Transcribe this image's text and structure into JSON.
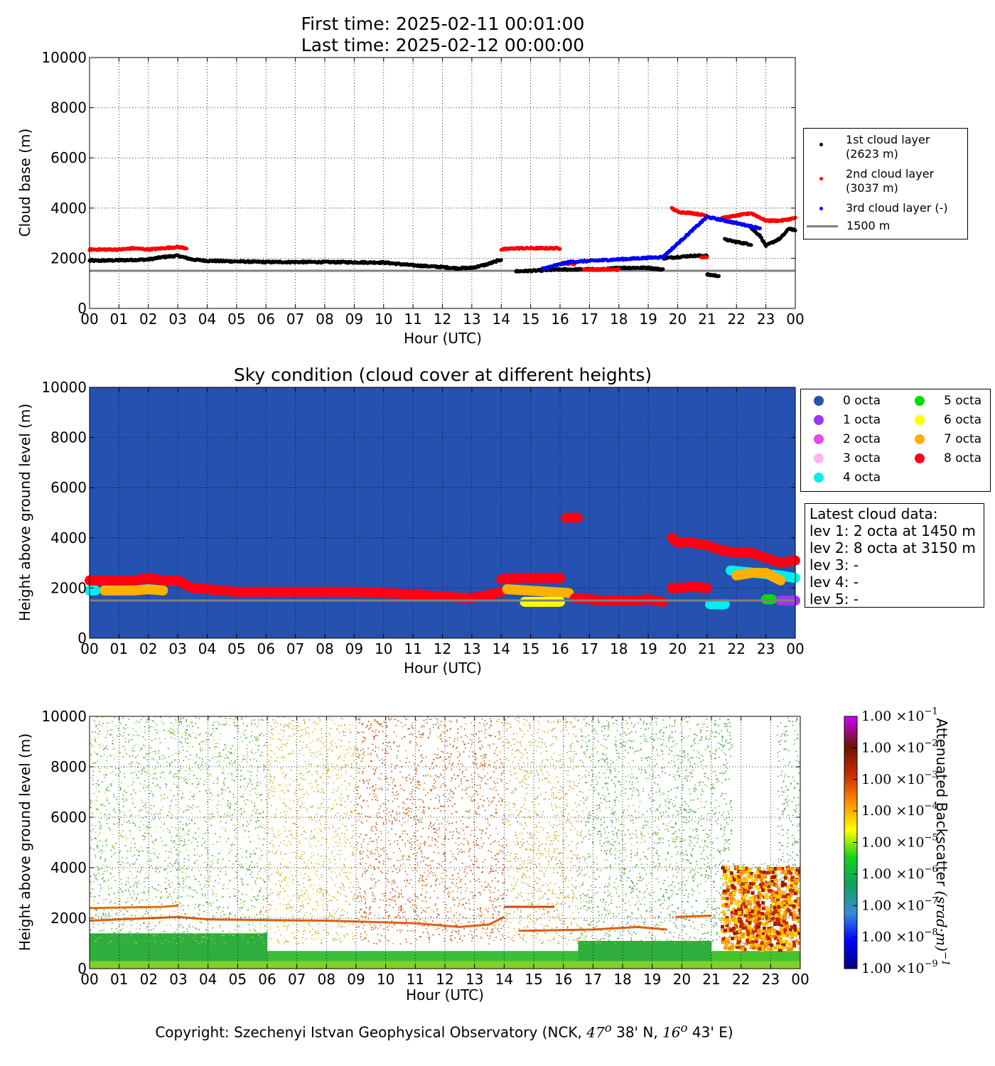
{
  "title_line1": "First time: 2025-02-11 00:01:00",
  "title_line2": "Last time: 2025-02-12 00:00:00",
  "copyright": {
    "prefix": "Copyright: Szechenyi Istvan Geophysical Observatory (NCK, ",
    "lat_deg": "47",
    "lat_min": " 38' N, ",
    "lon_deg": "16",
    "lon_min": " 43' E)",
    "degree_symbol": "o"
  },
  "legend_cloud": [
    {
      "label_line1": "1st cloud layer",
      "label_line2": "(2623 m)",
      "color": "#000000"
    },
    {
      "label_line1": "2nd cloud layer",
      "label_line2": "(3037 m)",
      "color": "#ff0000"
    },
    {
      "label_line1": "3rd cloud layer (-)",
      "label_line2": "",
      "color": "#0000ff"
    },
    {
      "label_line1": "1500 m",
      "label_line2": "",
      "color": "#808080"
    }
  ],
  "legend_octa": [
    {
      "label": "0 octa",
      "color": "#2551b0"
    },
    {
      "label": "1 octa",
      "color": "#a035f0"
    },
    {
      "label": "2 octa",
      "color": "#e64ae6"
    },
    {
      "label": "3 octa",
      "color": "#fbb6f1"
    },
    {
      "label": "4 octa",
      "color": "#00eeee"
    },
    {
      "label": "5 octa",
      "color": "#00dd00"
    },
    {
      "label": "6 octa",
      "color": "#ffff00"
    },
    {
      "label": "7 octa",
      "color": "#ffb000"
    },
    {
      "label": "8 octa",
      "color": "#ff0015"
    }
  ],
  "latest": {
    "heading": "Latest cloud data:",
    "lines": [
      "lev 1: 2 octa at 1450 m",
      "lev 2: 8 octa at 3150 m",
      "lev 3: -",
      "lev 4: -",
      "lev 5: -"
    ]
  },
  "chart_data": [
    {
      "type": "scatter",
      "xlabel": "Hour (UTC)",
      "ylabel": "Cloud base (m)",
      "xlim": [
        0,
        24
      ],
      "ylim": [
        0,
        10000
      ],
      "x_ticks": [
        "00",
        "01",
        "02",
        "03",
        "04",
        "05",
        "06",
        "07",
        "08",
        "09",
        "10",
        "11",
        "12",
        "13",
        "14",
        "15",
        "16",
        "17",
        "18",
        "19",
        "20",
        "21",
        "22",
        "23",
        "00"
      ],
      "y_ticks": [
        "0",
        "2000",
        "4000",
        "6000",
        "8000",
        "10000"
      ],
      "grid": true,
      "legend_position": "right",
      "reference_line": {
        "y": 1500,
        "color": "#808080"
      },
      "series": [
        {
          "name": "1st cloud layer",
          "color": "#000000",
          "segments": [
            {
              "x": [
                0,
                1,
                2,
                2.5,
                3,
                3.5,
                4,
                6,
                8,
                10,
                11,
                12,
                12.5,
                13,
                13.5,
                14
              ],
              "y": [
                1900,
                1920,
                1950,
                2050,
                2100,
                1950,
                1900,
                1850,
                1850,
                1830,
                1720,
                1650,
                1600,
                1620,
                1750,
                1950
              ]
            },
            {
              "x": [
                14.5,
                15,
                16,
                17,
                17.5,
                18,
                19,
                19.5
              ],
              "y": [
                1480,
                1500,
                1550,
                1560,
                1560,
                1620,
                1620,
                1550
              ]
            },
            {
              "x": [
                19.5,
                20,
                20.5,
                21
              ],
              "y": [
                2000,
                2050,
                2100,
                2100
              ]
            },
            {
              "x": [
                21,
                21.4
              ],
              "y": [
                1350,
                1300
              ]
            },
            {
              "x": [
                21.6,
                22,
                22.5
              ],
              "y": [
                2750,
                2650,
                2550
              ]
            },
            {
              "x": [
                22.5,
                22.8,
                23,
                23.5,
                23.8,
                24
              ],
              "y": [
                3200,
                2900,
                2500,
                2800,
                3200,
                3100
              ]
            }
          ]
        },
        {
          "name": "2nd cloud layer",
          "color": "#ff0000",
          "segments": [
            {
              "x": [
                0,
                0.5,
                1,
                1.5,
                2,
                2.5,
                3,
                3.3
              ],
              "y": [
                2350,
                2350,
                2350,
                2400,
                2350,
                2400,
                2450,
                2400
              ]
            },
            {
              "x": [
                14,
                14.5,
                15,
                15.5,
                16
              ],
              "y": [
                2350,
                2400,
                2400,
                2400,
                2400
              ]
            },
            {
              "x": [
                16,
                16.5
              ],
              "y": [
                1800,
                1780
              ]
            },
            {
              "x": [
                16.8,
                17,
                17.5,
                18
              ],
              "y": [
                1550,
                1550,
                1550,
                1550
              ]
            },
            {
              "x": [
                19.8,
                20,
                20.5,
                21
              ],
              "y": [
                4000,
                3850,
                3800,
                3700
              ]
            },
            {
              "x": [
                20.8,
                21
              ],
              "y": [
                2050,
                2050
              ]
            },
            {
              "x": [
                21.5,
                22,
                22.5,
                23,
                23.5,
                24
              ],
              "y": [
                3600,
                3700,
                3800,
                3500,
                3500,
                3600
              ]
            }
          ]
        },
        {
          "name": "3rd cloud layer",
          "color": "#0000ff",
          "segments": [
            {
              "x": [
                15.4,
                16.3,
                19.5,
                21,
                22.8
              ],
              "y": [
                1580,
                1850,
                2050,
                3650,
                3200
              ]
            }
          ]
        }
      ]
    },
    {
      "type": "scatter",
      "title": "Sky condition (cloud cover at different heights)",
      "xlabel": "Hour (UTC)",
      "ylabel": "Height above ground level (m)",
      "xlim": [
        0,
        24
      ],
      "ylim": [
        0,
        10000
      ],
      "x_ticks": [
        "00",
        "01",
        "02",
        "03",
        "04",
        "05",
        "06",
        "07",
        "08",
        "09",
        "10",
        "11",
        "12",
        "13",
        "14",
        "15",
        "16",
        "17",
        "18",
        "19",
        "20",
        "21",
        "22",
        "23",
        "00"
      ],
      "y_ticks": [
        "0",
        "2000",
        "4000",
        "6000",
        "8000",
        "10000"
      ],
      "background": "#2551b0",
      "grid": true,
      "legend_position": "right",
      "reference_line": {
        "y": 1500,
        "color": "#808080"
      },
      "bands": [
        {
          "octa": 8,
          "x": [
            0,
            0.5,
            1,
            1.5,
            2,
            2.5,
            3,
            3.5,
            4,
            5,
            6,
            7,
            8,
            9,
            10,
            11,
            12,
            13,
            13.5,
            14
          ],
          "y": [
            2300,
            2300,
            2300,
            2300,
            2400,
            2300,
            2300,
            2000,
            1950,
            1850,
            1850,
            1850,
            1850,
            1850,
            1800,
            1750,
            1650,
            1600,
            1700,
            1850
          ]
        },
        {
          "octa": 7,
          "x": [
            0.5,
            1,
            1.5,
            2,
            2.5
          ],
          "y": [
            1900,
            1900,
            1900,
            1950,
            1900
          ]
        },
        {
          "octa": 4,
          "x": [
            0,
            0.2
          ],
          "y": [
            1900,
            1900
          ]
        },
        {
          "octa": 8,
          "x": [
            14,
            14.5,
            15,
            15.5,
            16
          ],
          "y": [
            2350,
            2400,
            2400,
            2400,
            2400
          ]
        },
        {
          "octa": 8,
          "x": [
            16.2,
            16.4,
            16.6
          ],
          "y": [
            4800,
            4800,
            4800
          ]
        },
        {
          "octa": 7,
          "x": [
            14.2,
            16.3
          ],
          "y": [
            1950,
            1800
          ]
        },
        {
          "octa": 6,
          "x": [
            14.8,
            15,
            15.5,
            16
          ],
          "y": [
            1450,
            1450,
            1450,
            1450
          ]
        },
        {
          "octa": 8,
          "x": [
            16.5,
            17,
            17.5,
            18,
            18.5,
            19,
            19.5
          ],
          "y": [
            1600,
            1550,
            1500,
            1500,
            1500,
            1550,
            1450
          ]
        },
        {
          "octa": 8,
          "x": [
            19.8,
            20,
            20.5,
            21
          ],
          "y": [
            2000,
            2000,
            2050,
            2000
          ]
        },
        {
          "octa": 8,
          "x": [
            19.8,
            20,
            20.5,
            21,
            21.5,
            22,
            22.5,
            23,
            23.5,
            24
          ],
          "y": [
            4000,
            3800,
            3800,
            3700,
            3500,
            3400,
            3400,
            3200,
            3000,
            3100
          ]
        },
        {
          "octa": 4,
          "x": [
            21.1,
            21.6
          ],
          "y": [
            1350,
            1350
          ]
        },
        {
          "octa": 4,
          "x": [
            21.8,
            23.5,
            24
          ],
          "y": [
            2700,
            2500,
            2400
          ]
        },
        {
          "octa": 7,
          "x": [
            22,
            22.5,
            23,
            23.5
          ],
          "y": [
            2500,
            2600,
            2600,
            2300
          ]
        },
        {
          "octa": 5,
          "x": [
            23,
            23.2
          ],
          "y": [
            1550,
            1550
          ]
        },
        {
          "octa": 1,
          "x": [
            23.5,
            24
          ],
          "y": [
            1500,
            1500
          ]
        }
      ]
    },
    {
      "type": "heatmap",
      "xlabel": "Hour (UTC)",
      "ylabel": "Height above ground level (m)",
      "xlim": [
        0,
        24
      ],
      "ylim": [
        0,
        10000
      ],
      "x_ticks": [
        "00",
        "01",
        "02",
        "03",
        "04",
        "05",
        "06",
        "07",
        "08",
        "09",
        "10",
        "11",
        "12",
        "13",
        "14",
        "15",
        "16",
        "17",
        "18",
        "19",
        "20",
        "21",
        "22",
        "23",
        "00"
      ],
      "y_ticks": [
        "0",
        "2000",
        "4000",
        "6000",
        "8000",
        "10000"
      ],
      "colorbar_label": "Attenuated Backscatter (srad·m)^-1",
      "colorbar_ticks": [
        {
          "mantissa": "1.00",
          "exp": "-1"
        },
        {
          "mantissa": "1.00",
          "exp": "-2"
        },
        {
          "mantissa": "1.00",
          "exp": "-3"
        },
        {
          "mantissa": "1.00",
          "exp": "-4"
        },
        {
          "mantissa": "1.00",
          "exp": "-5"
        },
        {
          "mantissa": "1.00",
          "exp": "-6"
        },
        {
          "mantissa": "1.00",
          "exp": "-7"
        },
        {
          "mantissa": "1.00",
          "exp": "-8"
        },
        {
          "mantissa": "1.00",
          "exp": "-9"
        }
      ],
      "colorbar_scale": "log",
      "colorbar_range": [
        "1e-9",
        "1e-1"
      ]
    }
  ]
}
